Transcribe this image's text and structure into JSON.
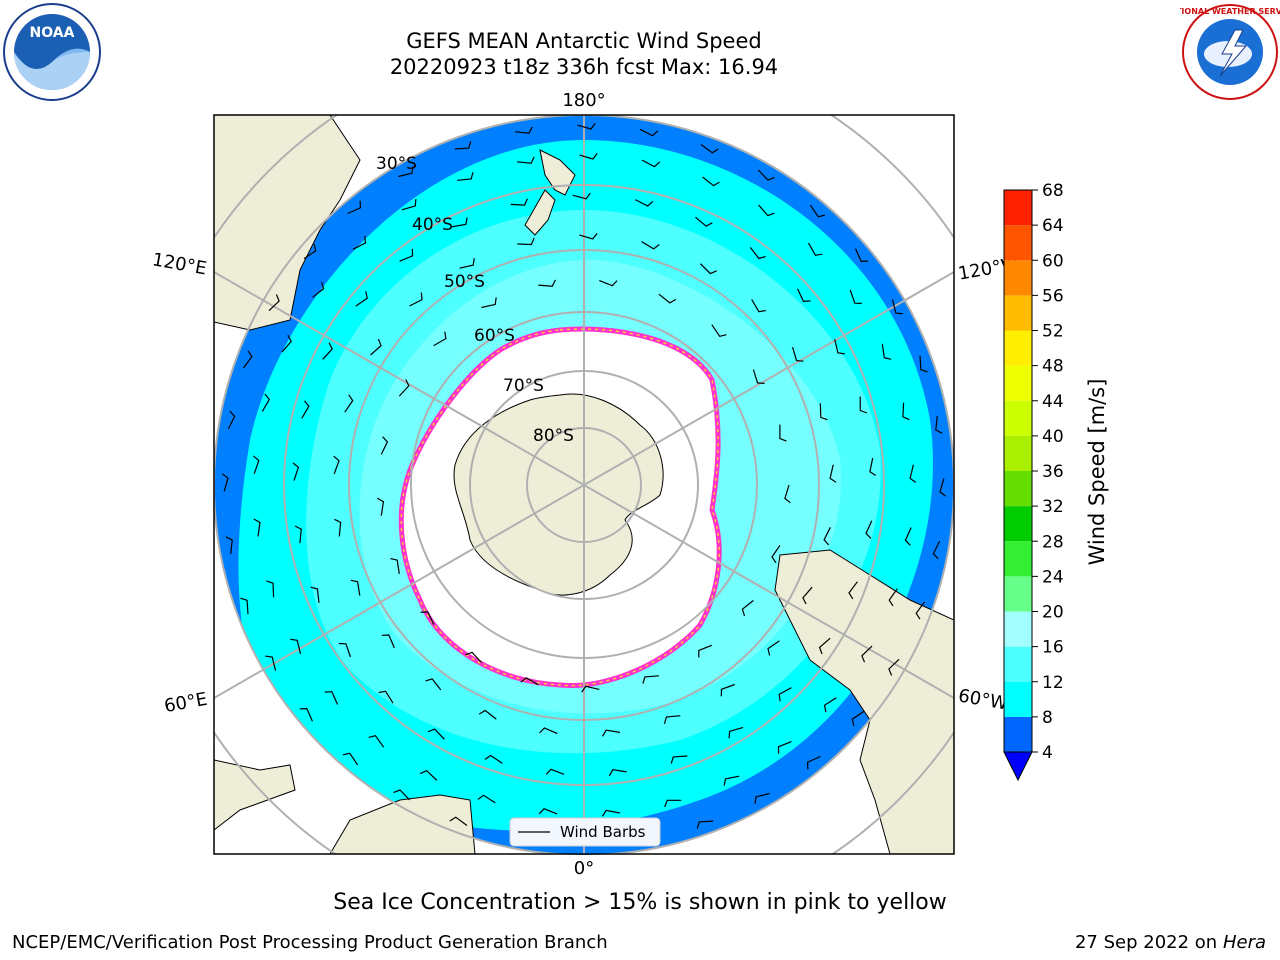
{
  "header": {
    "title_line1": "GEFS MEAN Antarctic Wind Speed",
    "title_line2": "20220923 t18z 336h fcst   Max: 16.94"
  },
  "map": {
    "projection": "south-polar-stereographic",
    "meridian_labels": [
      "180°",
      "120°E",
      "120°W",
      "60°E",
      "60°W",
      "0°"
    ],
    "latitude_labels": [
      "30°S",
      "40°S",
      "50°S",
      "60°S",
      "70°S",
      "80°S"
    ],
    "legend_label": "Wind Barbs",
    "land_color": "#eeeed8",
    "sea_ice_color": "#ffffff",
    "sea_ice_edge_colors": [
      "#ff33cc",
      "#ffcc33"
    ]
  },
  "colorbar": {
    "label": "Wind Speed [m/s]",
    "ticks": [
      "4",
      "8",
      "12",
      "16",
      "20",
      "24",
      "28",
      "32",
      "36",
      "40",
      "44",
      "48",
      "52",
      "56",
      "60",
      "64",
      "68"
    ],
    "colors": [
      "#0066ff",
      "#00ffff",
      "#4dffff",
      "#a3ffff",
      "#66ff88",
      "#33ee33",
      "#00cc00",
      "#66dd00",
      "#aaee00",
      "#ccff00",
      "#eeff00",
      "#ffee00",
      "#ffbb00",
      "#ff8800",
      "#ff5500",
      "#ff2200"
    ],
    "extend_color": "#0000ff"
  },
  "caption": "Sea Ice Concentration > 15% is shown in pink to yellow",
  "footer": {
    "left": "NCEP/EMC/Verification Post Processing Product Generation Branch",
    "right_prefix": "27 Sep 2022 on",
    "right_host": "Hera"
  },
  "logos": {
    "noaa_text": "NOAA",
    "nws_text": "NATIONAL WEATHER SERVICE"
  }
}
